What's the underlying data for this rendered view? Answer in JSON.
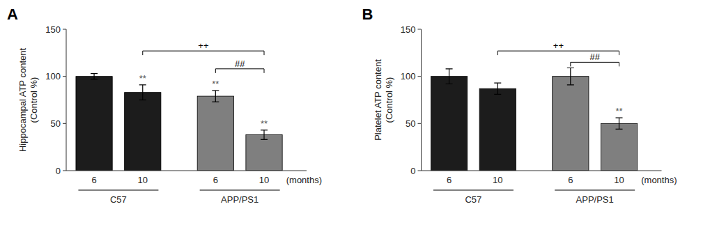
{
  "chart_data": [
    {
      "type": "bar",
      "title": "A",
      "ylabel": "Hippocampal ATP content\n(Control %)",
      "xlabel": "(months)",
      "categories": [
        "6",
        "10",
        "6",
        "10"
      ],
      "group_labels": [
        "C57",
        "APP/PS1"
      ],
      "values": [
        100,
        83,
        79,
        38
      ],
      "errors": [
        3,
        8,
        6,
        5
      ],
      "colors": [
        "#1c1c1c",
        "#1c1c1c",
        "#7f7f7f",
        "#7f7f7f"
      ],
      "sig_labels": [
        null,
        "**",
        "**",
        "**"
      ],
      "brackets": [
        {
          "from": 1,
          "to": 3,
          "y": 127,
          "label": "++"
        },
        {
          "from": 2,
          "to": 3,
          "y": 108,
          "label": "##"
        }
      ],
      "ylim": [
        0,
        150
      ],
      "yticks": [
        0,
        50,
        100,
        150
      ]
    },
    {
      "type": "bar",
      "title": "B",
      "ylabel": "Platelet ATP content\n(Control %)",
      "xlabel": "(months)",
      "categories": [
        "6",
        "10",
        "6",
        "10"
      ],
      "group_labels": [
        "C57",
        "APP/PS1"
      ],
      "values": [
        100,
        87,
        100,
        50
      ],
      "errors": [
        8,
        6,
        9,
        6
      ],
      "colors": [
        "#1c1c1c",
        "#1c1c1c",
        "#7f7f7f",
        "#7f7f7f"
      ],
      "sig_labels": [
        null,
        null,
        null,
        "**"
      ],
      "brackets": [
        {
          "from": 1,
          "to": 3,
          "y": 127,
          "label": "++"
        },
        {
          "from": 2,
          "to": 3,
          "y": 115,
          "label": "##"
        }
      ],
      "ylim": [
        0,
        150
      ],
      "yticks": [
        0,
        50,
        100,
        150
      ]
    }
  ]
}
